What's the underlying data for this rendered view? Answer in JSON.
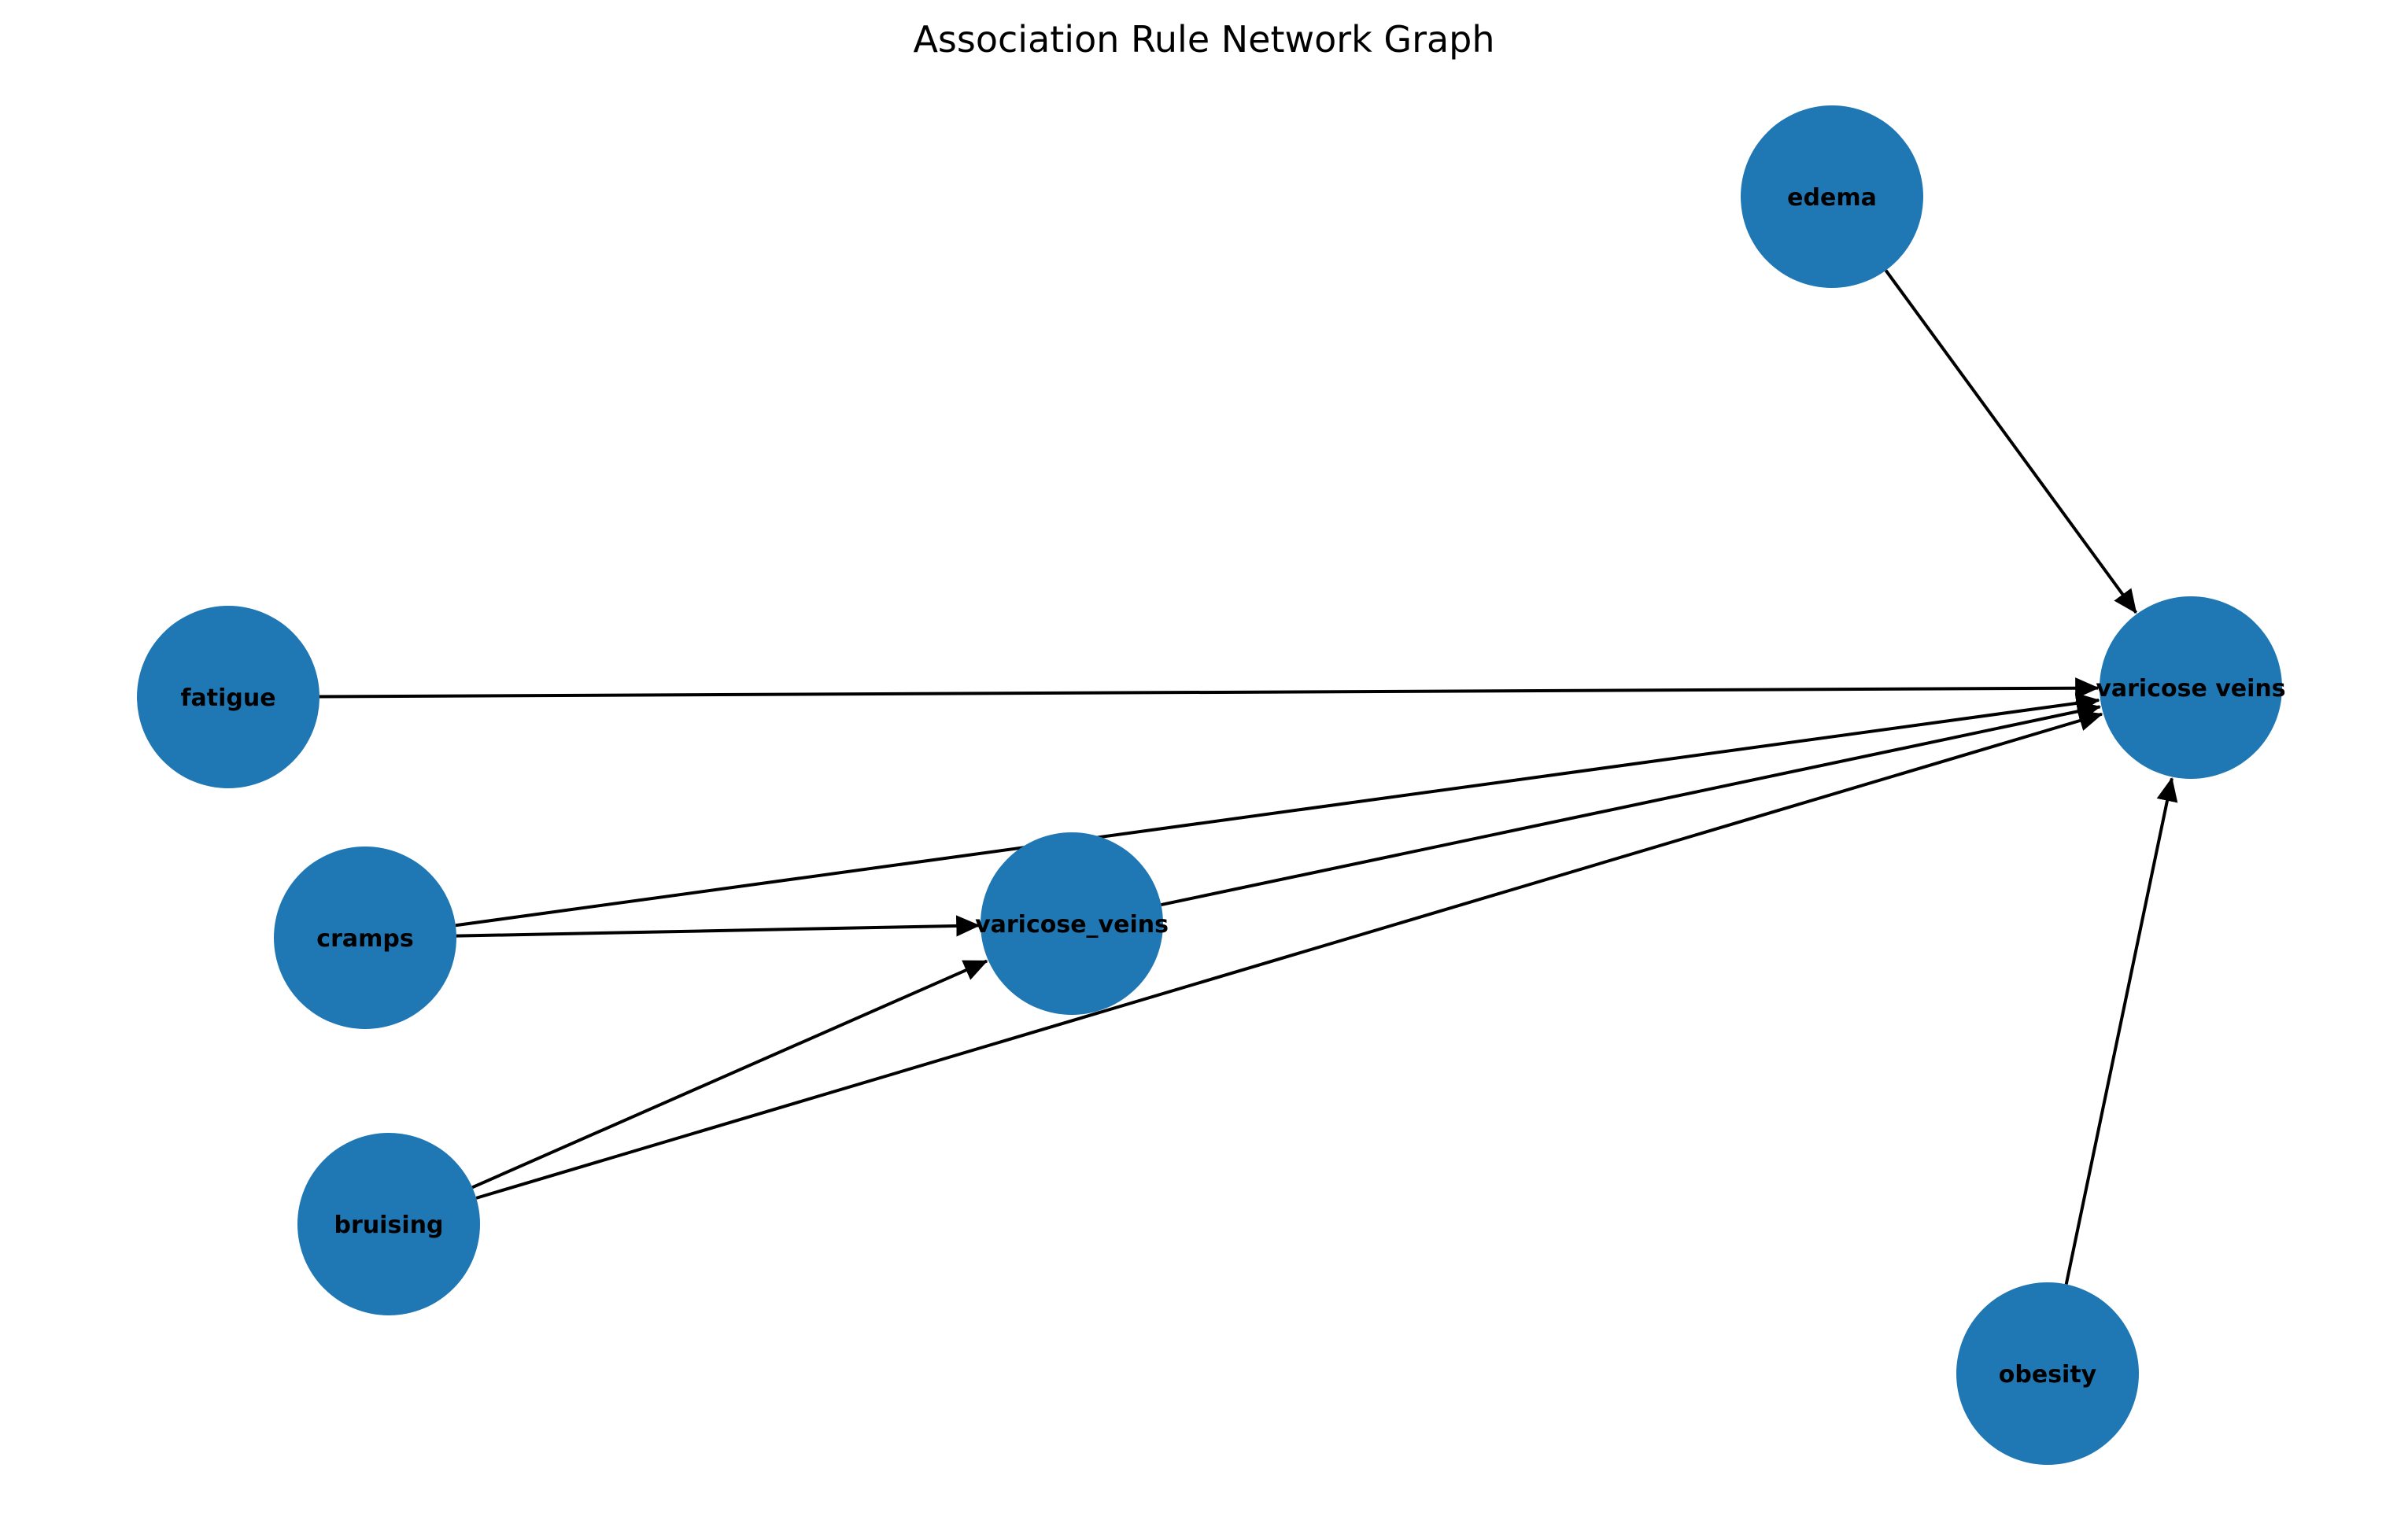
{
  "title": "Association Rule Network Graph",
  "colors": {
    "node_fill": "#1f77b4",
    "edge": "#000000",
    "label": "#000000",
    "background": "#ffffff"
  },
  "nodes": [
    {
      "id": "edema",
      "label": "edema"
    },
    {
      "id": "varicose_space",
      "label": "varicose veins"
    },
    {
      "id": "fatigue",
      "label": "fatigue"
    },
    {
      "id": "cramps",
      "label": "cramps"
    },
    {
      "id": "varicose_underscore",
      "label": "varicose_veins"
    },
    {
      "id": "bruising",
      "label": "bruising"
    },
    {
      "id": "obesity",
      "label": "obesity"
    }
  ],
  "edges": [
    {
      "source": "edema",
      "target": "varicose_space"
    },
    {
      "source": "fatigue",
      "target": "varicose_space"
    },
    {
      "source": "cramps",
      "target": "varicose_space"
    },
    {
      "source": "cramps",
      "target": "varicose_underscore"
    },
    {
      "source": "varicose_underscore",
      "target": "varicose_space"
    },
    {
      "source": "bruising",
      "target": "varicose_underscore"
    },
    {
      "source": "bruising",
      "target": "varicose_space"
    },
    {
      "source": "obesity",
      "target": "varicose_space"
    }
  ]
}
